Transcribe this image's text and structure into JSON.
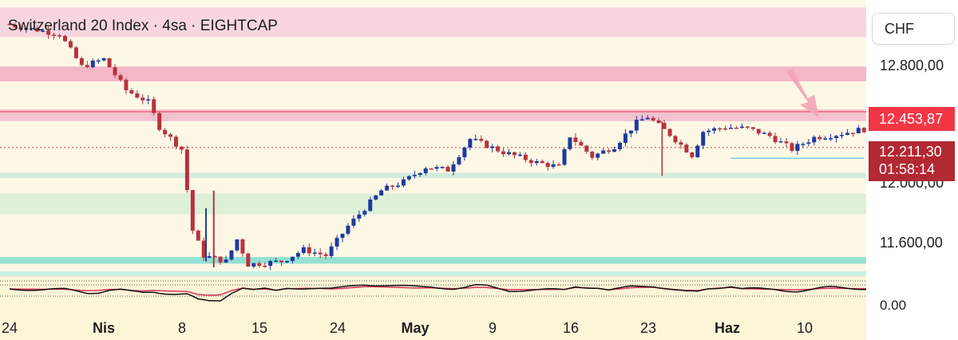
{
  "chart_title": "Switzerland 20 Index · 4sa · EIGHTCAP",
  "currency": "CHF",
  "colors": {
    "up": "#1e3a9e",
    "down": "#b8323e",
    "last_price_tag": "#f23645",
    "current_price_tag": "#b22833",
    "indicator_line": "#111111",
    "signal_line": "#d6335a"
  },
  "price_axis": {
    "ticks": [
      {
        "value": 12800,
        "label": "12.800,00"
      },
      {
        "value": 12000,
        "label": "12.000,00"
      },
      {
        "value": 11600,
        "label": "11.600,00"
      }
    ],
    "indicator_tick": "0.00",
    "last_price": "12.453,87",
    "current_price": "12.211,30",
    "countdown": "01:58:14"
  },
  "chart_data": {
    "type": "candlestick",
    "title": "Switzerland 20 Index · 4sa · EIGHTCAP",
    "ylim": [
      11380,
      13180
    ],
    "x_labels": [
      {
        "label": "24",
        "bold": false
      },
      {
        "label": "Nis",
        "bold": true
      },
      {
        "label": "8",
        "bold": false
      },
      {
        "label": "15",
        "bold": false
      },
      {
        "label": "24",
        "bold": false
      },
      {
        "label": "May",
        "bold": true
      },
      {
        "label": "9",
        "bold": false
      },
      {
        "label": "16",
        "bold": false
      },
      {
        "label": "23",
        "bold": false
      },
      {
        "label": "Haz",
        "bold": true
      },
      {
        "label": "10",
        "bold": false
      }
    ],
    "zones": [
      {
        "from": 12960,
        "to": 13160,
        "color": "#f7d6df"
      },
      {
        "from": 12660,
        "to": 12760,
        "color": "#f4b7c6"
      },
      {
        "from": 12390,
        "to": 12470,
        "color": "#f3c2cf"
      },
      {
        "from": 12005,
        "to": 12040,
        "color": "#d3ecdc"
      },
      {
        "from": 11760,
        "to": 11900,
        "color": "#dff0d8"
      },
      {
        "from": 11425,
        "to": 11470,
        "color": "#94e0d2"
      }
    ],
    "price_path": [
      {
        "d": 0,
        "p": 13050
      },
      {
        "d": 5,
        "p": 12980
      },
      {
        "d": 7,
        "p": 12760
      },
      {
        "d": 9,
        "p": 12810
      },
      {
        "d": 11,
        "p": 12600
      },
      {
        "d": 13,
        "p": 12520
      },
      {
        "d": 14,
        "p": 12350
      },
      {
        "d": 16,
        "p": 12200
      },
      {
        "d": 17,
        "p": 11650
      },
      {
        "d": 18,
        "p": 11480
      },
      {
        "d": 20,
        "p": 11440
      },
      {
        "d": 21,
        "p": 11590
      },
      {
        "d": 22,
        "p": 11420
      },
      {
        "d": 25,
        "p": 11440
      },
      {
        "d": 27,
        "p": 11520
      },
      {
        "d": 29,
        "p": 11480
      },
      {
        "d": 31,
        "p": 11680
      },
      {
        "d": 34,
        "p": 11920
      },
      {
        "d": 36,
        "p": 11980
      },
      {
        "d": 38,
        "p": 12080
      },
      {
        "d": 40,
        "p": 12060
      },
      {
        "d": 42,
        "p": 12270
      },
      {
        "d": 45,
        "p": 12180
      },
      {
        "d": 48,
        "p": 12110
      },
      {
        "d": 50,
        "p": 12080
      },
      {
        "d": 51,
        "p": 12290
      },
      {
        "d": 53,
        "p": 12150
      },
      {
        "d": 55,
        "p": 12220
      },
      {
        "d": 57,
        "p": 12380
      },
      {
        "d": 58,
        "p": 12420
      },
      {
        "d": 60,
        "p": 12300
      },
      {
        "d": 62,
        "p": 12160
      },
      {
        "d": 63,
        "p": 12320
      },
      {
        "d": 65,
        "p": 12350
      },
      {
        "d": 67,
        "p": 12340
      },
      {
        "d": 69,
        "p": 12290
      },
      {
        "d": 71,
        "p": 12200
      },
      {
        "d": 73,
        "p": 12280
      },
      {
        "d": 75,
        "p": 12300
      },
      {
        "d": 77,
        "p": 12330
      },
      {
        "d": 79,
        "p": 12350
      },
      {
        "d": 81,
        "p": 12340
      },
      {
        "d": 82,
        "p": 12215
      }
    ],
    "horizontal_lines": [
      {
        "value": 12453.87,
        "style": "solid",
        "color": "#f23645"
      },
      {
        "value": 12211.3,
        "style": "dotted",
        "color": "#d63a4a"
      },
      {
        "value": 12139,
        "style": "solid",
        "color": "#3fb5d6"
      }
    ],
    "indicator": {
      "zero_label": "0.00",
      "levels": [
        0.9,
        0.55,
        0.1
      ]
    }
  }
}
